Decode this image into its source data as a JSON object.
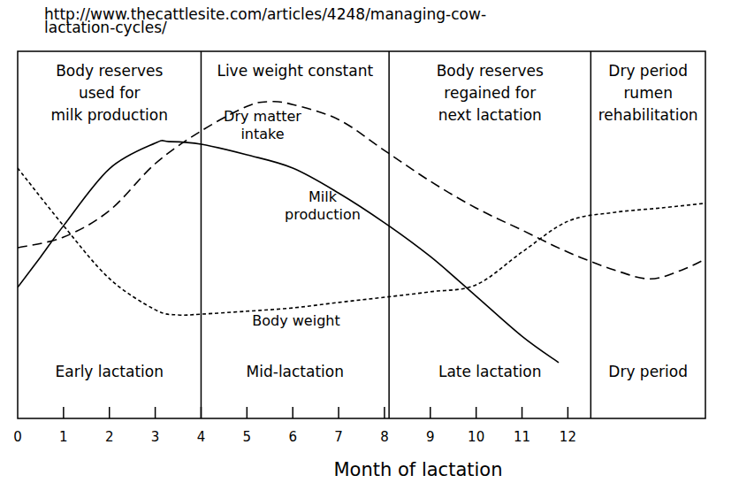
{
  "chart_data": {
    "type": "line",
    "source": "http://www.thecattlesite.com/articles/4248/managing-cow-lactation-cycles/",
    "x_label": "Month of lactation",
    "xlim": [
      0,
      15
    ],
    "xticks": [
      0,
      1,
      2,
      3,
      4,
      5,
      6,
      7,
      8,
      9,
      10,
      11,
      12
    ],
    "ylim": [
      0,
      100
    ],
    "tick_labels": "x",
    "grid": false,
    "phases": [
      {
        "start": 0,
        "end": 4,
        "top_label": [
          "Body reserves",
          "used for",
          "milk production"
        ],
        "bottom_label": "Early lactation"
      },
      {
        "start": 4,
        "end": 8.1,
        "top_label": [
          "Live weight constant"
        ],
        "bottom_label": "Mid-lactation"
      },
      {
        "start": 8.1,
        "end": 12.5,
        "top_label": [
          "Body reserves",
          "regained for",
          "next lactation"
        ],
        "bottom_label": "Late lactation"
      },
      {
        "start": 12.5,
        "end": 15,
        "top_label": [
          "Dry period",
          "rumen",
          "rehabilitation"
        ],
        "bottom_label": "Dry period"
      }
    ],
    "series": [
      {
        "name": "Milk production",
        "color": "#000000",
        "line_style": "solid",
        "x": [
          0,
          0.5,
          1,
          2,
          3,
          3.3,
          4,
          5,
          6,
          7,
          8,
          9,
          10,
          11,
          11.8
        ],
        "values": [
          35.7,
          44,
          52.5,
          68,
          75,
          75.4,
          74.7,
          71.8,
          68.2,
          61.4,
          53.3,
          44.1,
          33.3,
          22.4,
          15.2
        ]
      },
      {
        "name": "Dry matter intake",
        "color": "#000000",
        "line_style": "dashed",
        "x": [
          0,
          1,
          2,
          3,
          4,
          5,
          5.5,
          6,
          7,
          8,
          9,
          10,
          11,
          12,
          13,
          13.8,
          14.5,
          15
        ],
        "values": [
          46.5,
          49.4,
          56.6,
          69.4,
          78.3,
          85,
          86.3,
          85.5,
          81.4,
          73,
          64.6,
          57.3,
          51.3,
          45.3,
          40.5,
          38,
          40.5,
          43.4
        ]
      },
      {
        "name": "Body weight",
        "color": "#000000",
        "line_style": "dotted",
        "x": [
          0,
          1,
          2,
          3,
          3.5,
          4,
          5,
          6,
          7,
          8,
          9,
          10,
          11,
          12,
          13,
          14,
          15
        ],
        "values": [
          68.2,
          52.5,
          38.1,
          29.6,
          28.2,
          28.4,
          29.2,
          30.1,
          31.6,
          33,
          34.5,
          36.4,
          45.3,
          53.7,
          56.1,
          57.3,
          58.6
        ]
      }
    ]
  }
}
